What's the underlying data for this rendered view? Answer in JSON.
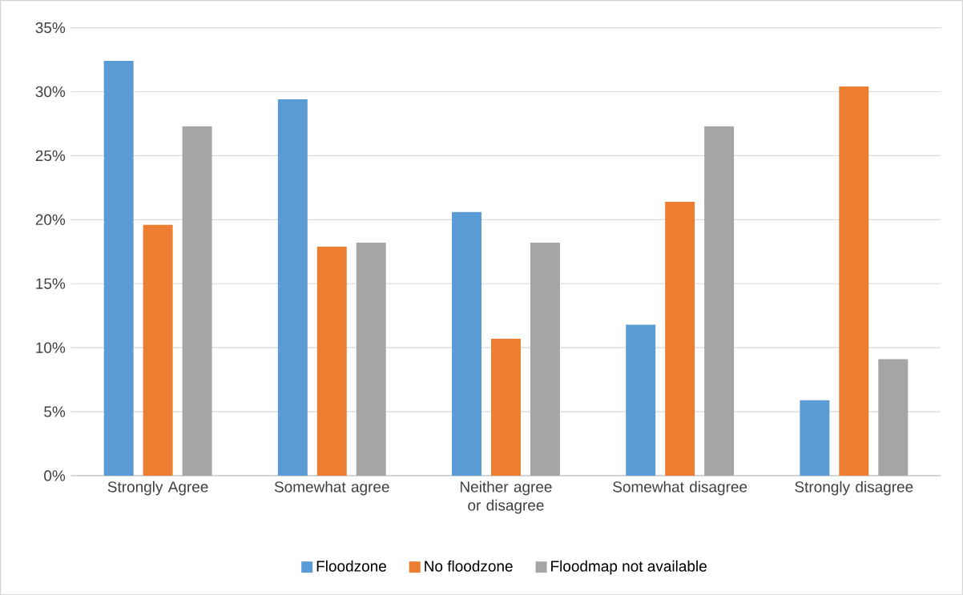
{
  "chart_data": {
    "type": "bar",
    "categories": [
      "Strongly Agree",
      "Somewhat agree",
      "Neither agree or disagree",
      "Somewhat disagree",
      "Strongly disagree"
    ],
    "series": [
      {
        "name": "Floodzone",
        "color": "#5b9bd5",
        "values": [
          32.4,
          29.4,
          20.6,
          11.8,
          5.9
        ]
      },
      {
        "name": "No floodzone",
        "color": "#ed7d31",
        "values": [
          19.6,
          17.9,
          10.7,
          21.4,
          30.4
        ]
      },
      {
        "name": "Floodmap not available",
        "color": "#a5a5a5",
        "values": [
          27.3,
          18.2,
          18.2,
          27.3,
          9.1
        ]
      }
    ],
    "ylim": [
      0,
      35
    ],
    "yticks": [
      {
        "value": 0,
        "label": "0%"
      },
      {
        "value": 5,
        "label": "5%"
      },
      {
        "value": 10,
        "label": "10%"
      },
      {
        "value": 15,
        "label": "15%"
      },
      {
        "value": 20,
        "label": "20%"
      },
      {
        "value": 25,
        "label": "25%"
      },
      {
        "value": 30,
        "label": "30%"
      },
      {
        "value": 35,
        "label": "35%"
      }
    ],
    "grid": "y",
    "legend": "bottom"
  }
}
